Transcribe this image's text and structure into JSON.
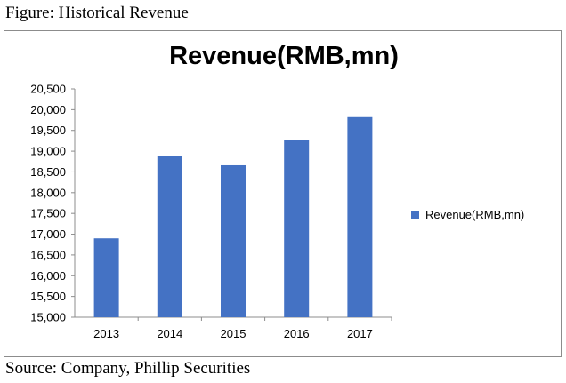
{
  "figure_caption": "Figure: Historical Revenue",
  "source_note": "Source: Company, Phillip Securities",
  "chart_data": {
    "type": "bar",
    "title": "Revenue(RMB,mn)",
    "categories": [
      "2013",
      "2014",
      "2015",
      "2016",
      "2017"
    ],
    "series": [
      {
        "name": "Revenue(RMB,mn)",
        "values": [
          16900,
          18880,
          18660,
          19270,
          19820
        ]
      }
    ],
    "ylim": [
      15000,
      20500
    ],
    "ytick_step": 500,
    "ytick_labels": [
      "15,000",
      "15,500",
      "16,000",
      "16,500",
      "17,000",
      "17,500",
      "18,000",
      "18,500",
      "19,000",
      "19,500",
      "20,000",
      "20,500"
    ],
    "xlabel": "",
    "ylabel": "",
    "grid": false,
    "legend_position": "right",
    "bar_color": "#4472C4"
  }
}
